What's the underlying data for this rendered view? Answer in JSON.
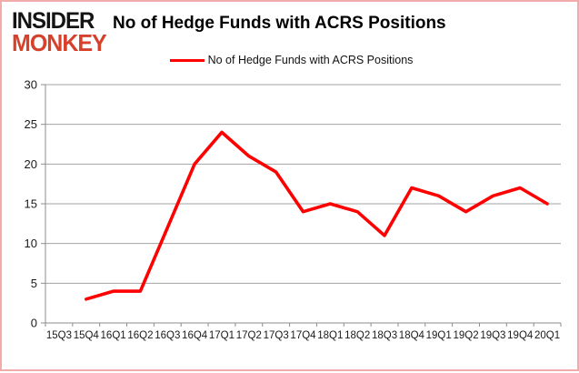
{
  "branding": {
    "logo_line1": "INSIDER",
    "logo_line2": "MONKEY",
    "logo_color_primary": "#141414",
    "logo_color_secondary": "#d6412b"
  },
  "header": {
    "title": "No of Hedge Funds with ACRS Positions"
  },
  "legend": {
    "label": "No of Hedge Funds with ACRS Positions",
    "line_color": "#ff0000"
  },
  "frame": {
    "border_color": "#f2abab",
    "background": "#ffffff"
  },
  "chart_data": {
    "type": "line",
    "title": "No of Hedge Funds with ACRS Positions",
    "xlabel": "",
    "ylabel": "",
    "categories": [
      "15Q3",
      "15Q4",
      "16Q1",
      "16Q2",
      "16Q3",
      "16Q4",
      "17Q1",
      "17Q2",
      "17Q3",
      "17Q4",
      "18Q1",
      "18Q2",
      "18Q3",
      "18Q4",
      "19Q1",
      "19Q2",
      "19Q3",
      "19Q4",
      "20Q1"
    ],
    "series": [
      {
        "name": "No of Hedge Funds with ACRS Positions",
        "color": "#ff0000",
        "values": [
          null,
          3,
          4,
          4,
          12,
          20,
          24,
          21,
          19,
          14,
          15,
          14,
          11,
          17,
          16,
          14,
          16,
          17,
          15
        ]
      }
    ],
    "ylim": [
      0,
      30
    ],
    "ytick_step": 5,
    "ytick_labels": [
      "0",
      "5",
      "10",
      "15",
      "20",
      "25",
      "30"
    ],
    "grid": true,
    "legend_position": "top-center",
    "gridline_color": "#a3a3a3",
    "axis_color": "#8c8c8c",
    "tick_label_color": "#1a1a1a"
  }
}
